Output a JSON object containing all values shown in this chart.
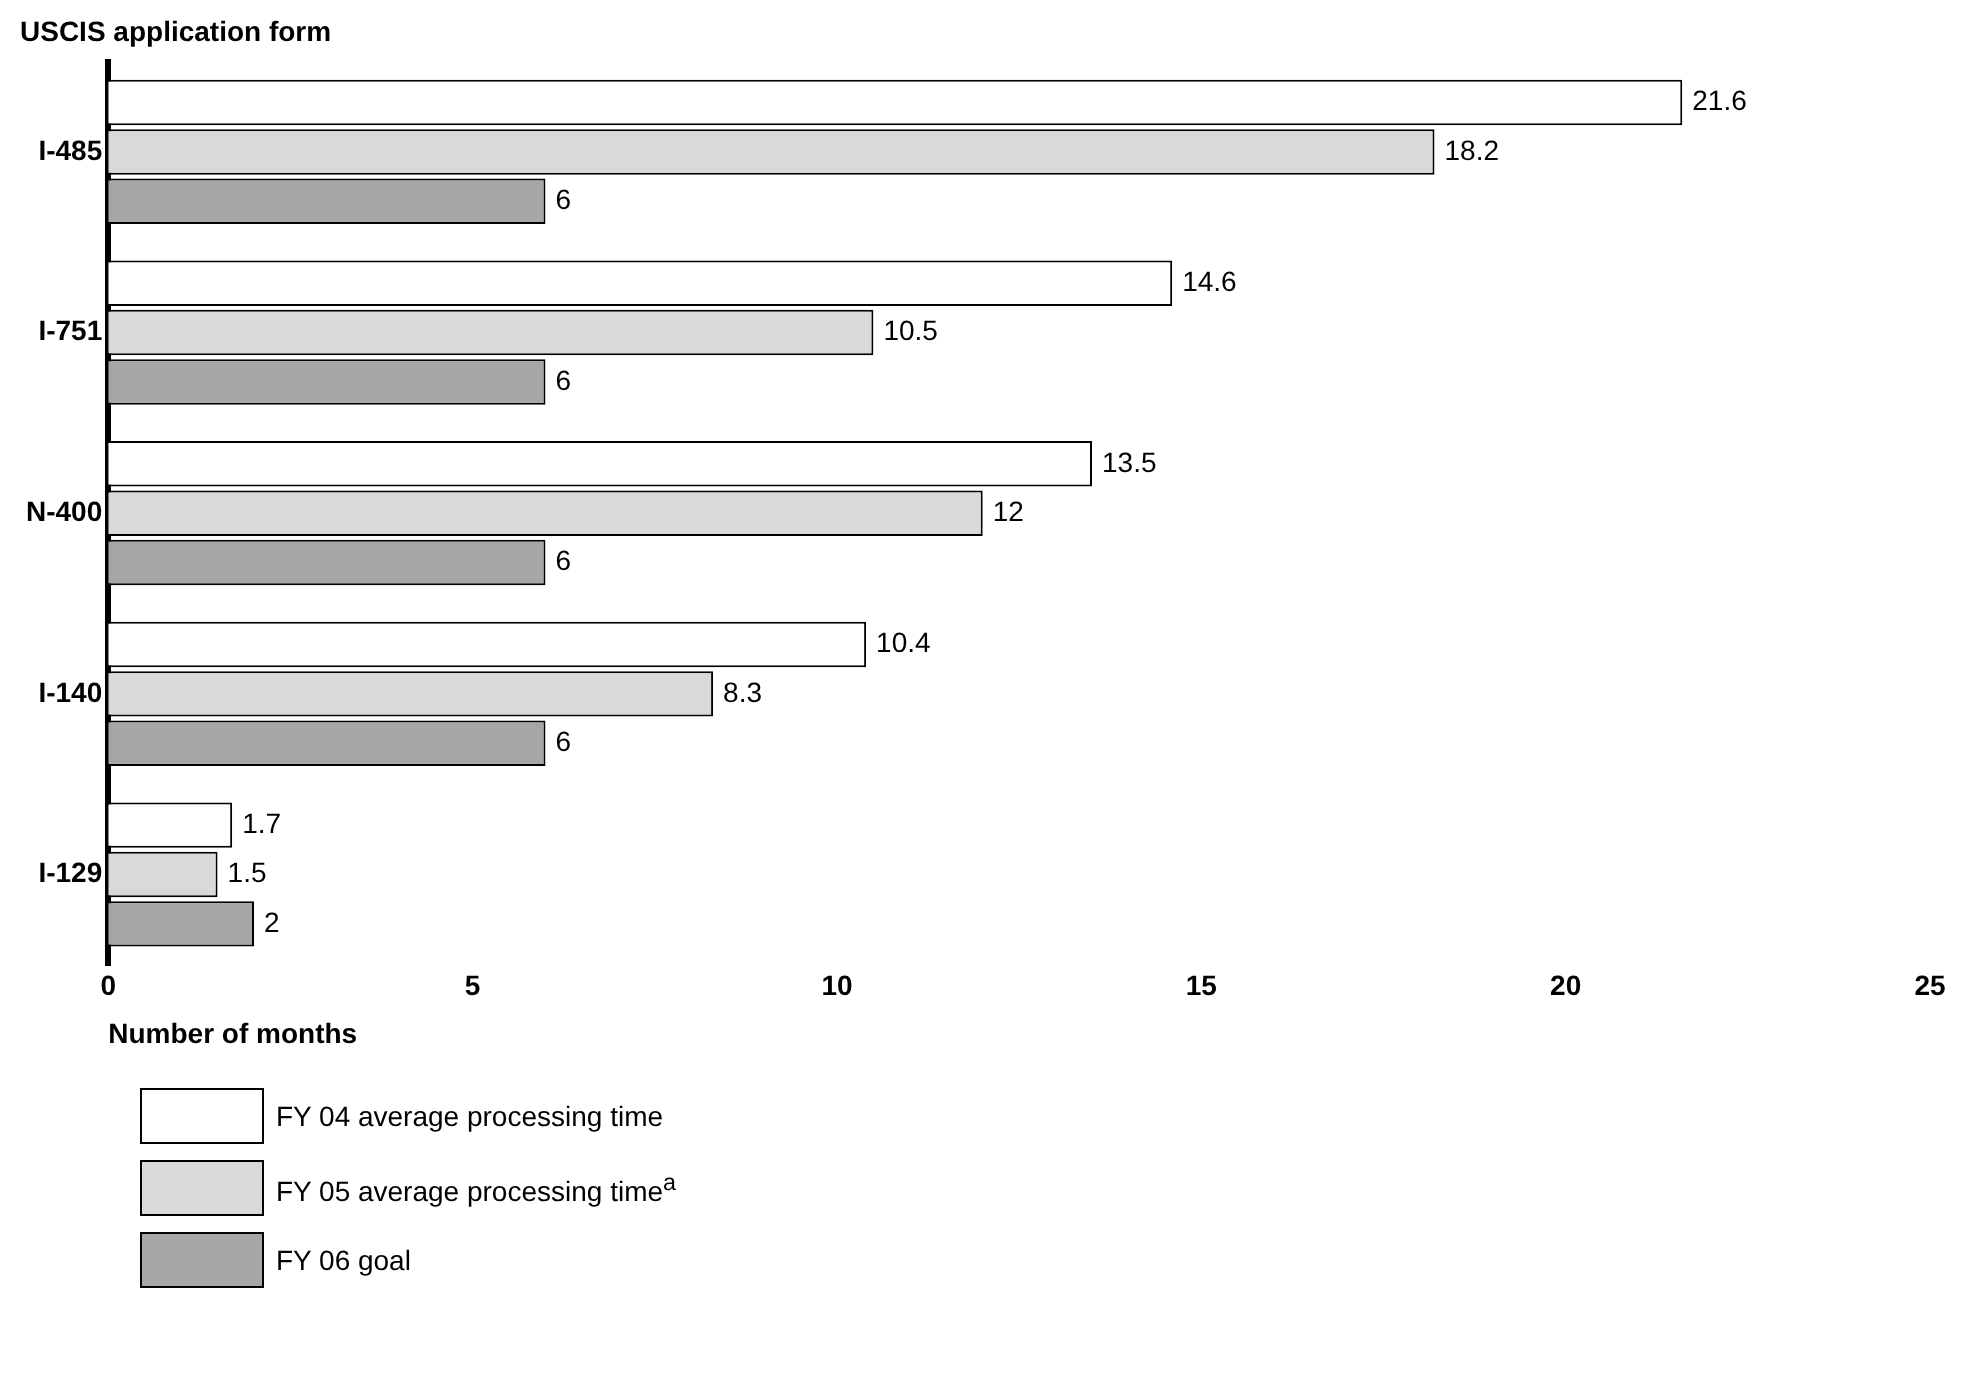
{
  "chart_data": {
    "type": "bar",
    "orientation": "horizontal",
    "title": "USCIS application form",
    "xlabel": "Number of months",
    "categories": [
      "I-485",
      "I-751",
      "N-400",
      "I-140",
      "I-129"
    ],
    "series": [
      {
        "name": "FY 04 average processing time",
        "color": "#ffffff",
        "values": [
          21.6,
          14.6,
          13.5,
          10.4,
          1.7
        ]
      },
      {
        "name": "FY 05 average processing time$^{a}$",
        "color": "#d9d9d9",
        "values": [
          18.2,
          10.5,
          12,
          8.3,
          1.5
        ]
      },
      {
        "name": "FY 06 goal",
        "color": "#a6a6a6",
        "values": [
          6,
          6,
          6,
          6,
          2
        ]
      }
    ],
    "xlim": [
      0,
      25
    ],
    "xticks": [
      0,
      5,
      10,
      15,
      20,
      25
    ],
    "grid": false,
    "legend": "bottom",
    "data_labels": true
  }
}
